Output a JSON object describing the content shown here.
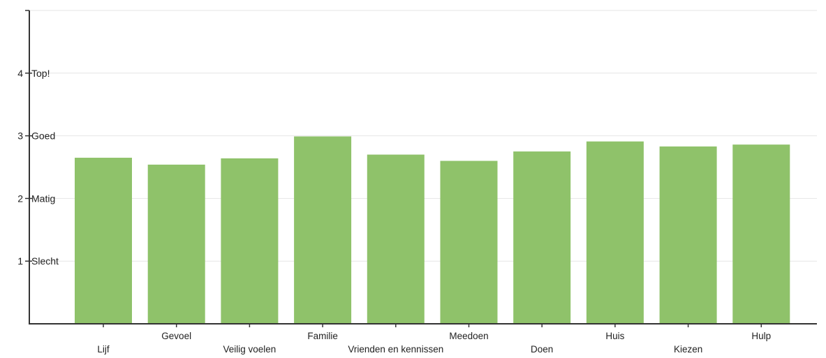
{
  "chart_data": {
    "type": "bar",
    "title": "",
    "xlabel": "",
    "ylabel": "",
    "ylim": [
      0,
      5
    ],
    "grid": true,
    "bar_color": "#8fc26a",
    "y_ticks": [
      {
        "value": 1,
        "label": "1",
        "word": "Slecht"
      },
      {
        "value": 2,
        "label": "2",
        "word": "Matig"
      },
      {
        "value": 3,
        "label": "3",
        "word": "Goed"
      },
      {
        "value": 4,
        "label": "4",
        "word": "Top!"
      }
    ],
    "categories": [
      "Lijf",
      "Gevoel",
      "Veilig voelen",
      "Familie",
      "Vrienden en kennissen",
      "Meedoen",
      "Doen",
      "Huis",
      "Kiezen",
      "Hulp"
    ],
    "values": [
      2.65,
      2.54,
      2.64,
      2.99,
      2.7,
      2.6,
      2.75,
      2.91,
      2.83,
      2.86
    ]
  }
}
